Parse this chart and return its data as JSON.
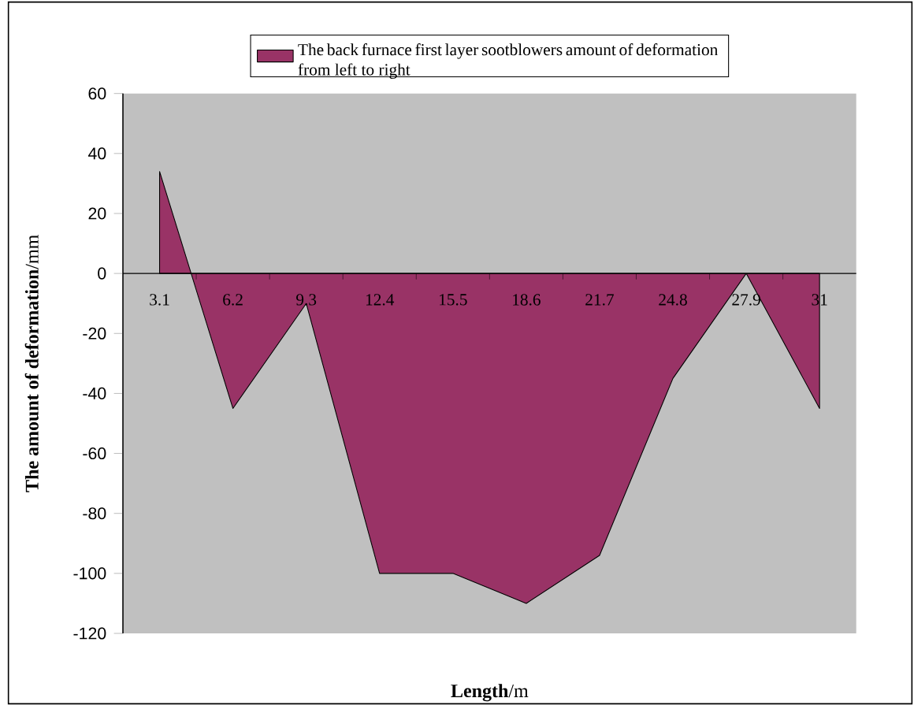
{
  "chart_data": {
    "type": "area",
    "xlabel": "**Length**/m",
    "ylabel": "**The amount of deformation**/mm",
    "categories": [
      "3.1",
      "6.2",
      "9.3",
      "12.4",
      "15.5",
      "18.6",
      "21.7",
      "24.8",
      "27.9",
      "31"
    ],
    "series": [
      {
        "name": "The back furnace first layer sootblowers amount of deformation from left to right",
        "color": "#993366",
        "values": [
          34,
          -45,
          -10,
          -100,
          -100,
          -110,
          -94,
          -35,
          0,
          -45
        ]
      }
    ],
    "ylim": [
      -120,
      60
    ],
    "yticks": [
      -120,
      -100,
      -80,
      -60,
      -40,
      -20,
      0,
      20,
      40,
      60
    ],
    "legend": "top"
  }
}
